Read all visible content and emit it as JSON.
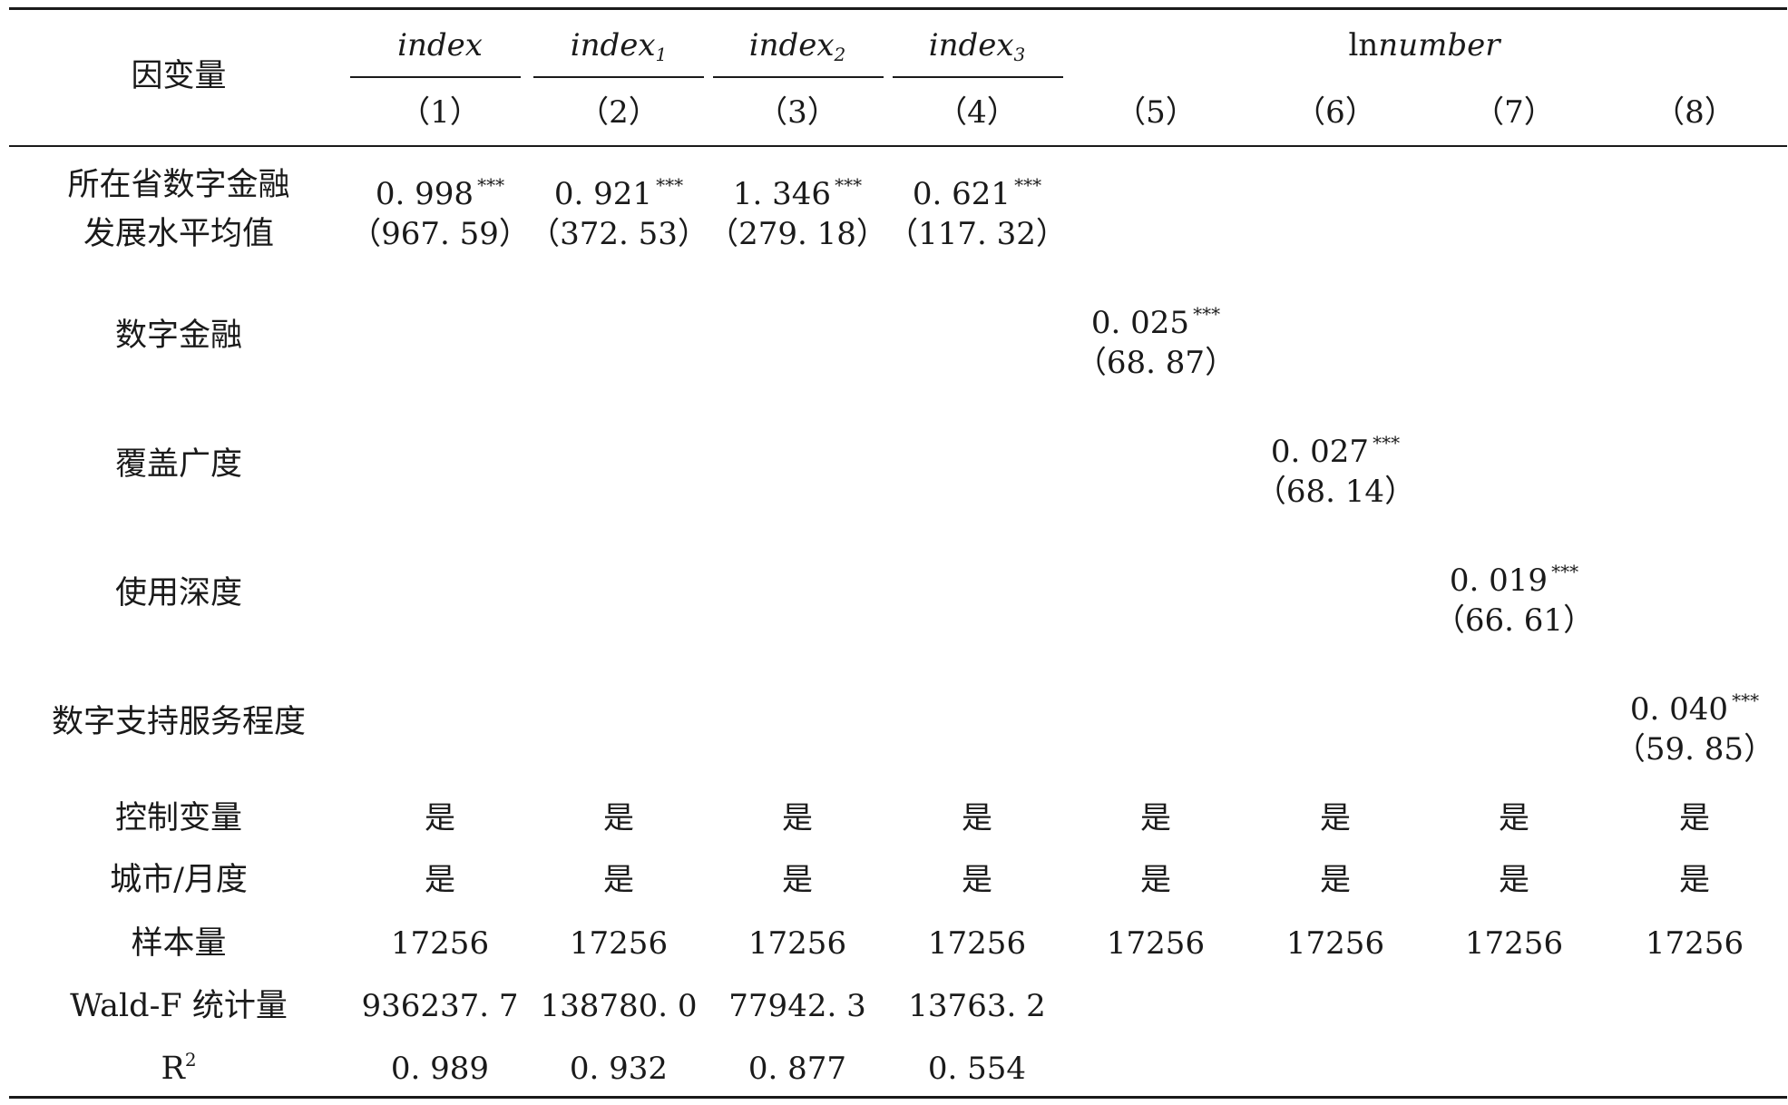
{
  "header": {
    "dv_label": "因变量",
    "groups": [
      {
        "base": "index",
        "sub": ""
      },
      {
        "base": "index",
        "sub": "1"
      },
      {
        "base": "index",
        "sub": "2"
      },
      {
        "base": "index",
        "sub": "3"
      }
    ],
    "ln_prefix": "ln",
    "ln_var": "number",
    "col_numbers": [
      "（1）",
      "（2）",
      "（3）",
      "（4）",
      "（5）",
      "（6）",
      "（7）",
      "（8）"
    ]
  },
  "stars": "***",
  "rows": {
    "province": {
      "label_line1": "所在省数字金融",
      "label_line2": "发展水平均值",
      "coefs": [
        "0. 998",
        "0. 921",
        "1. 346",
        "0. 621"
      ],
      "tstats": [
        "（967. 59）",
        "（372. 53）",
        "（279. 18）",
        "（117. 32）"
      ]
    },
    "digital_finance": {
      "label": "数字金融",
      "coef": "0. 025",
      "tstat": "（68. 87）"
    },
    "coverage": {
      "label": "覆盖广度",
      "coef": "0. 027",
      "tstat": "（68. 14）"
    },
    "usage": {
      "label": "使用深度",
      "coef": "0. 019",
      "tstat": "（66. 61）"
    },
    "support": {
      "label": "数字支持服务程度",
      "coef": "0. 040",
      "tstat": "（59. 85）"
    },
    "controls": {
      "label": "控制变量",
      "values": [
        "是",
        "是",
        "是",
        "是",
        "是",
        "是",
        "是",
        "是"
      ]
    },
    "fixed_effects": {
      "label": "城市/月度",
      "values": [
        "是",
        "是",
        "是",
        "是",
        "是",
        "是",
        "是",
        "是"
      ]
    },
    "sample": {
      "label": "样本量",
      "values": [
        "17256",
        "17256",
        "17256",
        "17256",
        "17256",
        "17256",
        "17256",
        "17256"
      ]
    },
    "wald": {
      "label": "Wald-F 统计量",
      "values": [
        "936237. 7",
        "138780. 0",
        "77942. 3",
        "13763. 2"
      ]
    },
    "r2": {
      "label_base": "R",
      "label_sup": "2",
      "values": [
        "0. 989",
        "0. 932",
        "0. 877",
        "0. 554"
      ]
    }
  }
}
